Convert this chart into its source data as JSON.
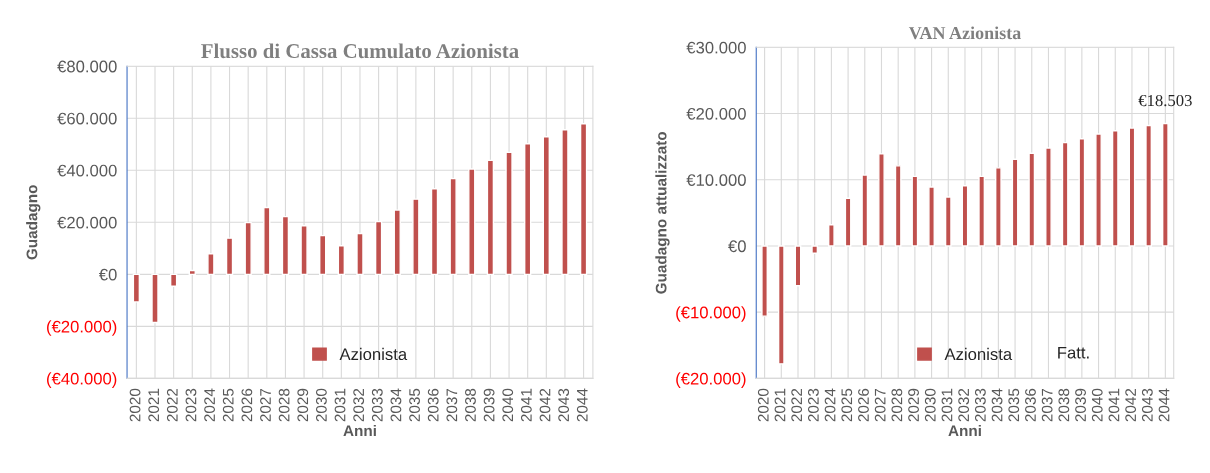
{
  "chart_data": [
    {
      "type": "bar",
      "title": "Flusso di Cassa Cumulato Azionista",
      "xlabel": "Anni",
      "ylabel": "Guadagno",
      "categories": [
        "2020",
        "2021",
        "2022",
        "2023",
        "2024",
        "2025",
        "2026",
        "2027",
        "2028",
        "2029",
        "2030",
        "2031",
        "2032",
        "2033",
        "2034",
        "2035",
        "2036",
        "2037",
        "2038",
        "2039",
        "2040",
        "2041",
        "2042",
        "2043",
        "2044"
      ],
      "series": [
        {
          "name": "Azionista",
          "color": "#c0504d",
          "values": [
            -10600,
            -18500,
            -4600,
            1500,
            7900,
            13900,
            19900,
            25700,
            22200,
            18700,
            14900,
            11000,
            15700,
            20300,
            24700,
            28900,
            32900,
            36800,
            40500,
            43800,
            46900,
            50200,
            52900,
            55600,
            57900
          ]
        }
      ],
      "ylim": [
        -40000,
        80000
      ],
      "yticks": [
        {
          "value": -40000,
          "label": "(€40.000)"
        },
        {
          "value": -20000,
          "label": "(€20.000)"
        },
        {
          "value": 0,
          "label": "€0"
        },
        {
          "value": 20000,
          "label": "€20.000"
        },
        {
          "value": 40000,
          "label": "€40.000"
        },
        {
          "value": 60000,
          "label": "€60.000"
        },
        {
          "value": 80000,
          "label": "€80.000"
        }
      ],
      "grid": true,
      "legend": "bottom"
    },
    {
      "type": "bar",
      "title": "VAN Azionista",
      "xlabel": "Anni",
      "ylabel": "Guadagno attualizzato",
      "categories": [
        "2020",
        "2021",
        "2022",
        "2023",
        "2024",
        "2025",
        "2026",
        "2027",
        "2028",
        "2029",
        "2030",
        "2031",
        "2032",
        "2033",
        "2034",
        "2035",
        "2036",
        "2037",
        "2038",
        "2039",
        "2040",
        "2041",
        "2042",
        "2043",
        "2044"
      ],
      "series": [
        {
          "name": "Azionista",
          "color": "#c0504d",
          "values": [
            -10600,
            -17800,
            -6000,
            -1100,
            3200,
            7200,
            10700,
            13900,
            12100,
            10500,
            8900,
            7400,
            9100,
            10500,
            11800,
            13100,
            14000,
            14800,
            15600,
            16200,
            16900,
            17400,
            17800,
            18200,
            18503
          ],
          "value_labels": [
            null,
            null,
            null,
            null,
            null,
            null,
            null,
            null,
            null,
            null,
            null,
            null,
            null,
            null,
            null,
            null,
            null,
            null,
            null,
            null,
            null,
            null,
            null,
            null,
            "€18.503"
          ]
        }
      ],
      "ylim": [
        -20000,
        30000
      ],
      "yticks": [
        {
          "value": -20000,
          "label": "(€20.000)"
        },
        {
          "value": -10000,
          "label": "(€10.000)"
        },
        {
          "value": 0,
          "label": "€0"
        },
        {
          "value": 10000,
          "label": "€10.000"
        },
        {
          "value": 20000,
          "label": "€20.000"
        },
        {
          "value": 30000,
          "label": "€30.000"
        }
      ],
      "grid": true,
      "legend": "bottom",
      "annotations": [
        "Fatt."
      ]
    }
  ]
}
